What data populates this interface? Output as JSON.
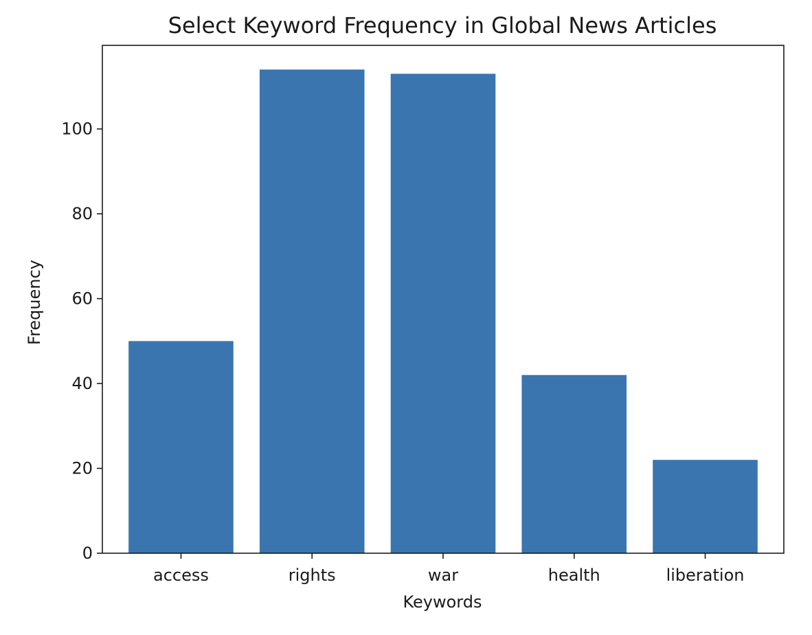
{
  "chart_data": {
    "type": "bar",
    "title": "Select Keyword Frequency in Global News Articles",
    "xlabel": "Keywords",
    "ylabel": "Frequency",
    "categories": [
      "access",
      "rights",
      "war",
      "health",
      "liberation"
    ],
    "values": [
      50,
      114,
      113,
      42,
      22
    ],
    "ylim": [
      0,
      119.7
    ],
    "yticks": [
      0,
      20,
      40,
      60,
      80,
      100
    ],
    "grid": false,
    "legend": "none",
    "colors": {
      "bar": "#3a75af",
      "axis": "#1a1a1a",
      "background": "#ffffff"
    }
  }
}
